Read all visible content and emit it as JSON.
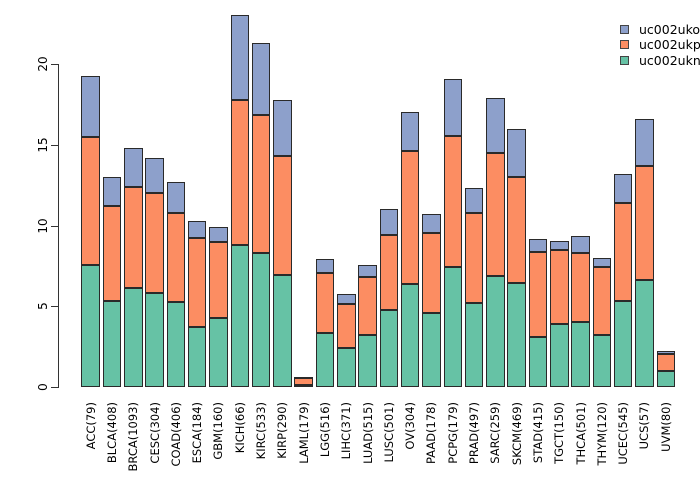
{
  "chart_data": {
    "type": "bar",
    "stacked": true,
    "title": "",
    "xlabel": "",
    "ylabel": "",
    "categories": [
      "ACC(79)",
      "BLCA(408)",
      "BRCA(1093)",
      "CESC(304)",
      "COAD(406)",
      "ESCA(184)",
      "GBM(160)",
      "KICH(66)",
      "KIRC(533)",
      "KIRP(290)",
      "LAML(179)",
      "LGG(516)",
      "LIHC(371)",
      "LUAD(515)",
      "LUSC(501)",
      "OV(304)",
      "PAAD(178)",
      "PCPG(179)",
      "PRAD(497)",
      "SARC(259)",
      "SKCM(469)",
      "STAD(415)",
      "TGCT(150)",
      "THCA(501)",
      "THYM(120)",
      "UCEC(545)",
      "UCS(57)",
      "UVM(80)"
    ],
    "series": [
      {
        "name": "uc002ukn",
        "color": "#66c2a5",
        "values": [
          7.55,
          5.35,
          6.15,
          5.85,
          5.25,
          3.7,
          4.3,
          8.8,
          8.3,
          6.95,
          0.15,
          3.35,
          2.4,
          3.25,
          4.75,
          6.4,
          4.6,
          7.4,
          5.2,
          6.9,
          6.45,
          3.1,
          3.9,
          4.0,
          3.2,
          5.3,
          6.6,
          1.0
        ]
      },
      {
        "name": "uc002ukp",
        "color": "#fc8d62",
        "values": [
          7.9,
          5.85,
          6.25,
          6.15,
          5.55,
          5.55,
          4.65,
          8.95,
          8.55,
          7.35,
          0.4,
          3.7,
          2.75,
          3.55,
          4.65,
          8.2,
          4.95,
          8.15,
          5.55,
          7.6,
          6.55,
          5.25,
          4.6,
          4.3,
          4.2,
          6.1,
          7.1,
          1.05
        ]
      },
      {
        "name": "uc002uko",
        "color": "#8da0cb",
        "values": [
          3.8,
          1.8,
          2.4,
          2.15,
          1.9,
          1.05,
          0.95,
          5.3,
          4.45,
          3.45,
          0.1,
          0.9,
          0.6,
          0.75,
          1.6,
          2.45,
          1.15,
          3.5,
          1.6,
          3.4,
          3.0,
          0.8,
          0.55,
          1.05,
          0.6,
          1.8,
          2.9,
          0.15
        ]
      }
    ],
    "stack_order_bottom_to_top": [
      "uc002ukn",
      "uc002ukp",
      "uc002uko"
    ],
    "totals": [
      19.25,
      13.0,
      14.8,
      14.15,
      12.7,
      10.3,
      9.9,
      23.05,
      21.3,
      17.75,
      0.65,
      7.95,
      5.75,
      7.55,
      11.0,
      17.05,
      10.7,
      19.05,
      12.35,
      17.9,
      16.0,
      9.15,
      9.05,
      9.35,
      8.0,
      13.2,
      16.6,
      2.2
    ],
    "y_axis": {
      "ticks": [
        0,
        5,
        10,
        15,
        20
      ],
      "range": [
        0,
        23.5
      ],
      "grid": false,
      "tick_label_rotation_deg": 90
    },
    "x_axis": {
      "tick_label_rotation_deg": 90
    },
    "legend_position": "top-right"
  },
  "legend": {
    "items": [
      {
        "label": "uc002uko",
        "color": "#8da0cb"
      },
      {
        "label": "uc002ukp",
        "color": "#fc8d62"
      },
      {
        "label": "uc002ukn",
        "color": "#66c2a5"
      }
    ]
  },
  "colors": {
    "background": "#ffffff",
    "bar_border": "#2a2a2a",
    "axis": "#333333",
    "text": "#000000"
  }
}
